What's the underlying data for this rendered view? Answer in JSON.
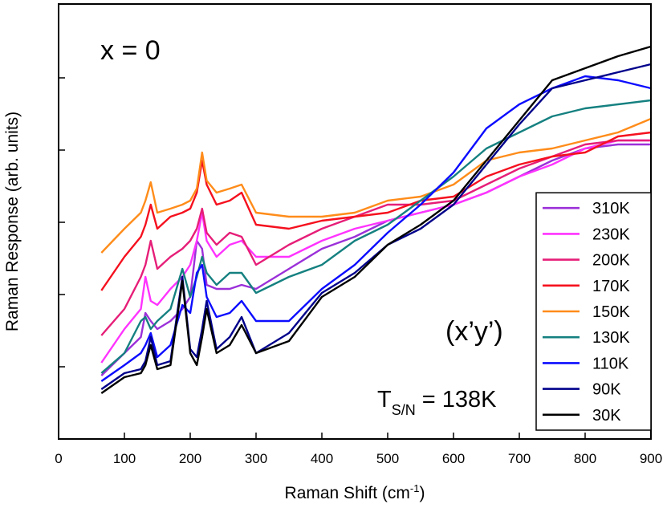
{
  "chart_data": {
    "type": "line",
    "x_label": {
      "text": "Raman Shift (cm",
      "superscript": "-1",
      "end": ")"
    },
    "y_label": "Raman Response (arb. units)",
    "annotations": {
      "sample": "x = 0",
      "polarization": "(x’y’)",
      "transition": {
        "text": "T",
        "subscript": "S/N",
        "rest": "= 138K"
      }
    },
    "xlim": [
      0,
      900
    ],
    "xticks": [
      0,
      100,
      200,
      300,
      400,
      500,
      600,
      700,
      800,
      900
    ],
    "ylim": [
      0,
      542
    ],
    "yticks": [
      90,
      180,
      270,
      360,
      450
    ],
    "y_tick_labels_shown": false,
    "legend": "lower right",
    "x": [
      65,
      100,
      125,
      132,
      140,
      150,
      170,
      188,
      200,
      210,
      218,
      225,
      240,
      260,
      278,
      300,
      350,
      400,
      450,
      500,
      550,
      600,
      650,
      700,
      750,
      800,
      850,
      900
    ],
    "series": [
      {
        "name": "310K",
        "color": "#9b30d9",
        "values": [
          79,
          107,
          127,
          157,
          147,
          137,
          147,
          162,
          177,
          247,
          237,
          192,
          187,
          187,
          192,
          187,
          212,
          237,
          252,
          272,
          282,
          292,
          307,
          327,
          347,
          362,
          367,
          367
        ]
      },
      {
        "name": "230K",
        "color": "#ff33ff",
        "values": [
          95,
          137,
          162,
          202,
          172,
          167,
          187,
          202,
          217,
          247,
          282,
          247,
          227,
          242,
          247,
          227,
          227,
          247,
          262,
          272,
          282,
          292,
          307,
          327,
          342,
          362,
          372,
          372
        ]
      },
      {
        "name": "200K",
        "color": "#e61e78",
        "values": [
          129,
          162,
          202,
          217,
          247,
          212,
          227,
          237,
          247,
          262,
          287,
          257,
          242,
          257,
          252,
          217,
          242,
          262,
          277,
          292,
          292,
          297,
          317,
          337,
          352,
          367,
          372,
          372
        ]
      },
      {
        "name": "170K",
        "color": "#f5101e",
        "values": [
          185,
          227,
          252,
          267,
          292,
          262,
          277,
          282,
          287,
          307,
          347,
          317,
          292,
          297,
          307,
          267,
          262,
          272,
          277,
          282,
          297,
          302,
          327,
          342,
          352,
          357,
          377,
          382
        ]
      },
      {
        "name": "150K",
        "color": "#ff8c1a",
        "values": [
          232,
          262,
          282,
          297,
          320,
          282,
          287,
          292,
          297,
          312,
          357,
          322,
          307,
          312,
          317,
          282,
          277,
          277,
          282,
          297,
          302,
          317,
          347,
          357,
          362,
          372,
          382,
          399
        ]
      },
      {
        "name": "130K",
        "color": "#158080",
        "values": [
          82,
          107,
          147,
          152,
          137,
          147,
          162,
          212,
          177,
          202,
          227,
          207,
          192,
          207,
          207,
          182,
          202,
          217,
          247,
          267,
          297,
          327,
          362,
          382,
          402,
          412,
          417,
          422
        ]
      },
      {
        "name": "110K",
        "color": "#0c0cff",
        "values": [
          72,
          92,
          107,
          117,
          132,
          102,
          117,
          167,
          157,
          207,
          217,
          177,
          152,
          157,
          172,
          147,
          147,
          187,
          217,
          257,
          292,
          332,
          387,
          417,
          437,
          452,
          447,
          437
        ]
      },
      {
        "name": "90K",
        "color": "#00008b",
        "values": [
          62,
          82,
          87,
          97,
          127,
          92,
          97,
          202,
          112,
          102,
          137,
          172,
          112,
          127,
          152,
          107,
          132,
          182,
          207,
          242,
          262,
          292,
          342,
          392,
          437,
          447,
          457,
          467
        ]
      },
      {
        "name": "30K",
        "color": "#000000",
        "values": [
          57,
          77,
          82,
          92,
          117,
          87,
          92,
          197,
          107,
          92,
          127,
          162,
          107,
          117,
          142,
          107,
          122,
          177,
          202,
          242,
          267,
          297,
          347,
          397,
          447,
          462,
          477,
          489
        ]
      }
    ]
  }
}
